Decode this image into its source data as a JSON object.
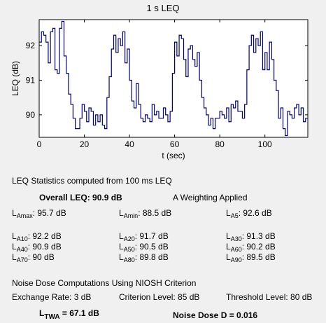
{
  "chart_data": {
    "type": "line",
    "title": "1 s LEQ",
    "xlabel": "t (sec)",
    "ylabel": "LEQ (dB)",
    "xlim": [
      0,
      119
    ],
    "ylim": [
      89.35,
      92.75
    ],
    "xticks": [
      0,
      20,
      40,
      60,
      80,
      100
    ],
    "yticks": [
      90,
      91,
      92
    ],
    "grid": false,
    "series": [
      {
        "color": "#000080",
        "step": true,
        "x": [
          0,
          1,
          2,
          3,
          4,
          5,
          6,
          7,
          8,
          9,
          10,
          11,
          12,
          13,
          14,
          15,
          16,
          17,
          18,
          19,
          20,
          21,
          22,
          23,
          24,
          25,
          26,
          27,
          28,
          29,
          30,
          31,
          32,
          33,
          34,
          35,
          36,
          37,
          38,
          39,
          40,
          41,
          42,
          43,
          44,
          45,
          46,
          47,
          48,
          49,
          50,
          51,
          52,
          53,
          54,
          55,
          56,
          57,
          58,
          59,
          60,
          61,
          62,
          63,
          64,
          65,
          66,
          67,
          68,
          69,
          70,
          71,
          72,
          73,
          74,
          75,
          76,
          77,
          78,
          79,
          80,
          81,
          82,
          83,
          84,
          85,
          86,
          87,
          88,
          89,
          90,
          91,
          92,
          93,
          94,
          95,
          96,
          97,
          98,
          99,
          100,
          101,
          102,
          103,
          104,
          105,
          106,
          107,
          108,
          109,
          110,
          111,
          112,
          113,
          114,
          115,
          116,
          117,
          118
        ],
        "y": [
          92.1,
          92.4,
          92.3,
          92.1,
          91.5,
          92.4,
          92.5,
          91.3,
          91.2,
          92.5,
          92.7,
          91.7,
          91.2,
          90.6,
          90.3,
          89.9,
          89.6,
          89.6,
          89.9,
          90.3,
          90.1,
          89.8,
          90.2,
          90.1,
          89.7,
          90.0,
          89.8,
          90.0,
          89.7,
          89.6,
          90.5,
          91.1,
          91.9,
          92.3,
          91.8,
          92.2,
          92.0,
          92.4,
          91.5,
          91.9,
          91.0,
          90.4,
          90.2,
          90.9,
          90.3,
          89.9,
          89.8,
          90.0,
          89.9,
          89.8,
          90.3,
          90.0,
          90.1,
          89.9,
          89.9,
          90.2,
          90.0,
          89.8,
          90.1,
          91.2,
          92.1,
          91.7,
          92.3,
          92.2,
          91.6,
          91.1,
          91.9,
          92.0,
          91.6,
          91.4,
          91.8,
          91.0,
          90.5,
          90.2,
          90.0,
          89.7,
          89.9,
          89.6,
          89.9,
          89.9,
          90.1,
          90.0,
          89.9,
          90.2,
          89.8,
          90.3,
          90.2,
          90.4,
          90.1,
          90.1,
          89.9,
          90.3,
          91.3,
          92.0,
          92.3,
          91.8,
          92.2,
          92.0,
          92.4,
          91.3,
          91.8,
          91.3,
          92.1,
          91.6,
          91.0,
          90.7,
          89.9,
          90.2,
          89.6,
          89.4,
          90.1,
          90.0,
          89.9,
          90.2,
          90.3,
          90.0,
          90.2,
          89.8,
          89.9
        ]
      }
    ]
  },
  "stats": {
    "heading": "LEQ Statistics computed from 100 ms LEQ",
    "overall": "Overall LEQ: 90.9 dB",
    "weighting": "A Weighting Applied",
    "lamax": {
      "letter": "L",
      "sub": "Amax",
      "value": ": 95.7 dB"
    },
    "lamin": {
      "letter": "L",
      "sub": "Amin",
      "value": ": 88.5 dB"
    },
    "la5": {
      "letter": "L",
      "sub": "A5",
      "value": ": 92.6 dB"
    },
    "la10": {
      "letter": "L",
      "sub": "A10",
      "value": ": 92.2 dB"
    },
    "la20": {
      "letter": "L",
      "sub": "A20",
      "value": ": 91.7 dB"
    },
    "la30": {
      "letter": "L",
      "sub": "A30",
      "value": ": 91.3 dB"
    },
    "la40": {
      "letter": "L",
      "sub": "A40",
      "value": ": 90.9 dB"
    },
    "la50": {
      "letter": "L",
      "sub": "A50",
      "value": ": 90.5 dB"
    },
    "la60": {
      "letter": "L",
      "sub": "A60",
      "value": ": 90.2 dB"
    },
    "la70": {
      "letter": "L",
      "sub": "A70",
      "value": ": 90 dB"
    },
    "la80": {
      "letter": "L",
      "sub": "A80",
      "value": ": 89.8 dB"
    },
    "la90": {
      "letter": "L",
      "sub": "A90",
      "value": ": 89.5 dB"
    }
  },
  "dose": {
    "heading": "Noise Dose Computations Using NIOSH Criterion",
    "exchange": "Exchange Rate: 3 dB",
    "criterion": "Criterion Level: 85 dB",
    "threshold": "Threshold Level: 80 dB",
    "ltwa": {
      "letter": "L",
      "sub": "TWA",
      "value": " = 67.1 dB"
    },
    "dose_value": "Noise Dose D = 0.016"
  }
}
